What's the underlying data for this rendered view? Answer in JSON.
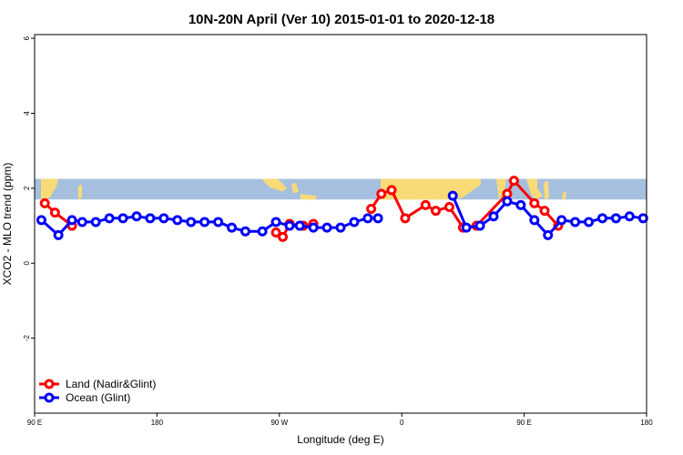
{
  "chart_data": {
    "type": "line",
    "title": "10N-20N April (Ver 10)   2015-01-01 to 2020-12-18",
    "xlabel": "Longitude (deg E)",
    "ylabel": "XCO2 - MLO trend (ppm)",
    "x_ticks": [
      {
        "value": 90,
        "label": "90 E"
      },
      {
        "value": 180,
        "label": "180"
      },
      {
        "value": 270,
        "label": "90 W"
      },
      {
        "value": 360,
        "label": "0"
      },
      {
        "value": 450,
        "label": "90 E"
      },
      {
        "value": 540,
        "label": "180"
      }
    ],
    "y_ticks": [
      -2,
      0,
      2,
      4,
      6
    ],
    "xlim": [
      90,
      540
    ],
    "ylim": [
      -4,
      6.1
    ],
    "map_band": {
      "ymin": 1.7,
      "ymax": 2.25,
      "ocean_color": "#a7bfdf",
      "land_color": "#f8db77"
    },
    "legend_position": "bottom-left",
    "series": [
      {
        "name": "Land (Nadir&Glint)",
        "color": "#ff0000",
        "segments": [
          [
            [
              97.5,
              1.6
            ],
            [
              105,
              1.35
            ],
            [
              117.5,
              1.0
            ]
          ],
          [
            [
              267.5,
              0.82
            ],
            [
              272.5,
              0.7
            ],
            [
              277.5,
              1.05
            ],
            [
              287.5,
              1.0
            ],
            [
              295,
              1.05
            ]
          ],
          [
            [
              337.5,
              1.45
            ],
            [
              345,
              1.85
            ],
            [
              352.5,
              1.95
            ],
            [
              362.5,
              1.2
            ],
            [
              377.5,
              1.55
            ],
            [
              385,
              1.4
            ],
            [
              395,
              1.5
            ],
            [
              405,
              0.95
            ],
            [
              415,
              1.0
            ],
            [
              437.5,
              1.85
            ],
            [
              442.5,
              2.2
            ],
            [
              457.5,
              1.6
            ],
            [
              465,
              1.4
            ],
            [
              475,
              1.0
            ]
          ]
        ]
      },
      {
        "name": "Ocean (Glint)",
        "color": "#0000ff",
        "segments": [
          [
            [
              95,
              1.15
            ],
            [
              107.5,
              0.75
            ],
            [
              117.5,
              1.15
            ],
            [
              125,
              1.1
            ],
            [
              135,
              1.1
            ],
            [
              145,
              1.2
            ],
            [
              155,
              1.2
            ],
            [
              165,
              1.25
            ],
            [
              175,
              1.2
            ],
            [
              185,
              1.2
            ],
            [
              195,
              1.15
            ],
            [
              205,
              1.1
            ],
            [
              215,
              1.1
            ],
            [
              225,
              1.1
            ],
            [
              235,
              0.95
            ],
            [
              245,
              0.85
            ],
            [
              257.5,
              0.85
            ],
            [
              267.5,
              1.1
            ],
            [
              277.5,
              1.0
            ],
            [
              285,
              1.0
            ],
            [
              295,
              0.95
            ],
            [
              305,
              0.95
            ],
            [
              315,
              0.95
            ],
            [
              325,
              1.1
            ],
            [
              335,
              1.2
            ],
            [
              342.5,
              1.2
            ]
          ],
          [
            [
              397.5,
              1.8
            ],
            [
              407.5,
              0.95
            ],
            [
              417.5,
              1.0
            ],
            [
              427.5,
              1.25
            ],
            [
              437.5,
              1.65
            ],
            [
              447.5,
              1.55
            ],
            [
              457.5,
              1.15
            ],
            [
              467.5,
              0.75
            ],
            [
              477.5,
              1.15
            ],
            [
              487.5,
              1.1
            ],
            [
              497.5,
              1.1
            ],
            [
              507.5,
              1.2
            ],
            [
              517.5,
              1.2
            ],
            [
              527.5,
              1.25
            ],
            [
              537.5,
              1.2
            ]
          ]
        ]
      }
    ]
  }
}
